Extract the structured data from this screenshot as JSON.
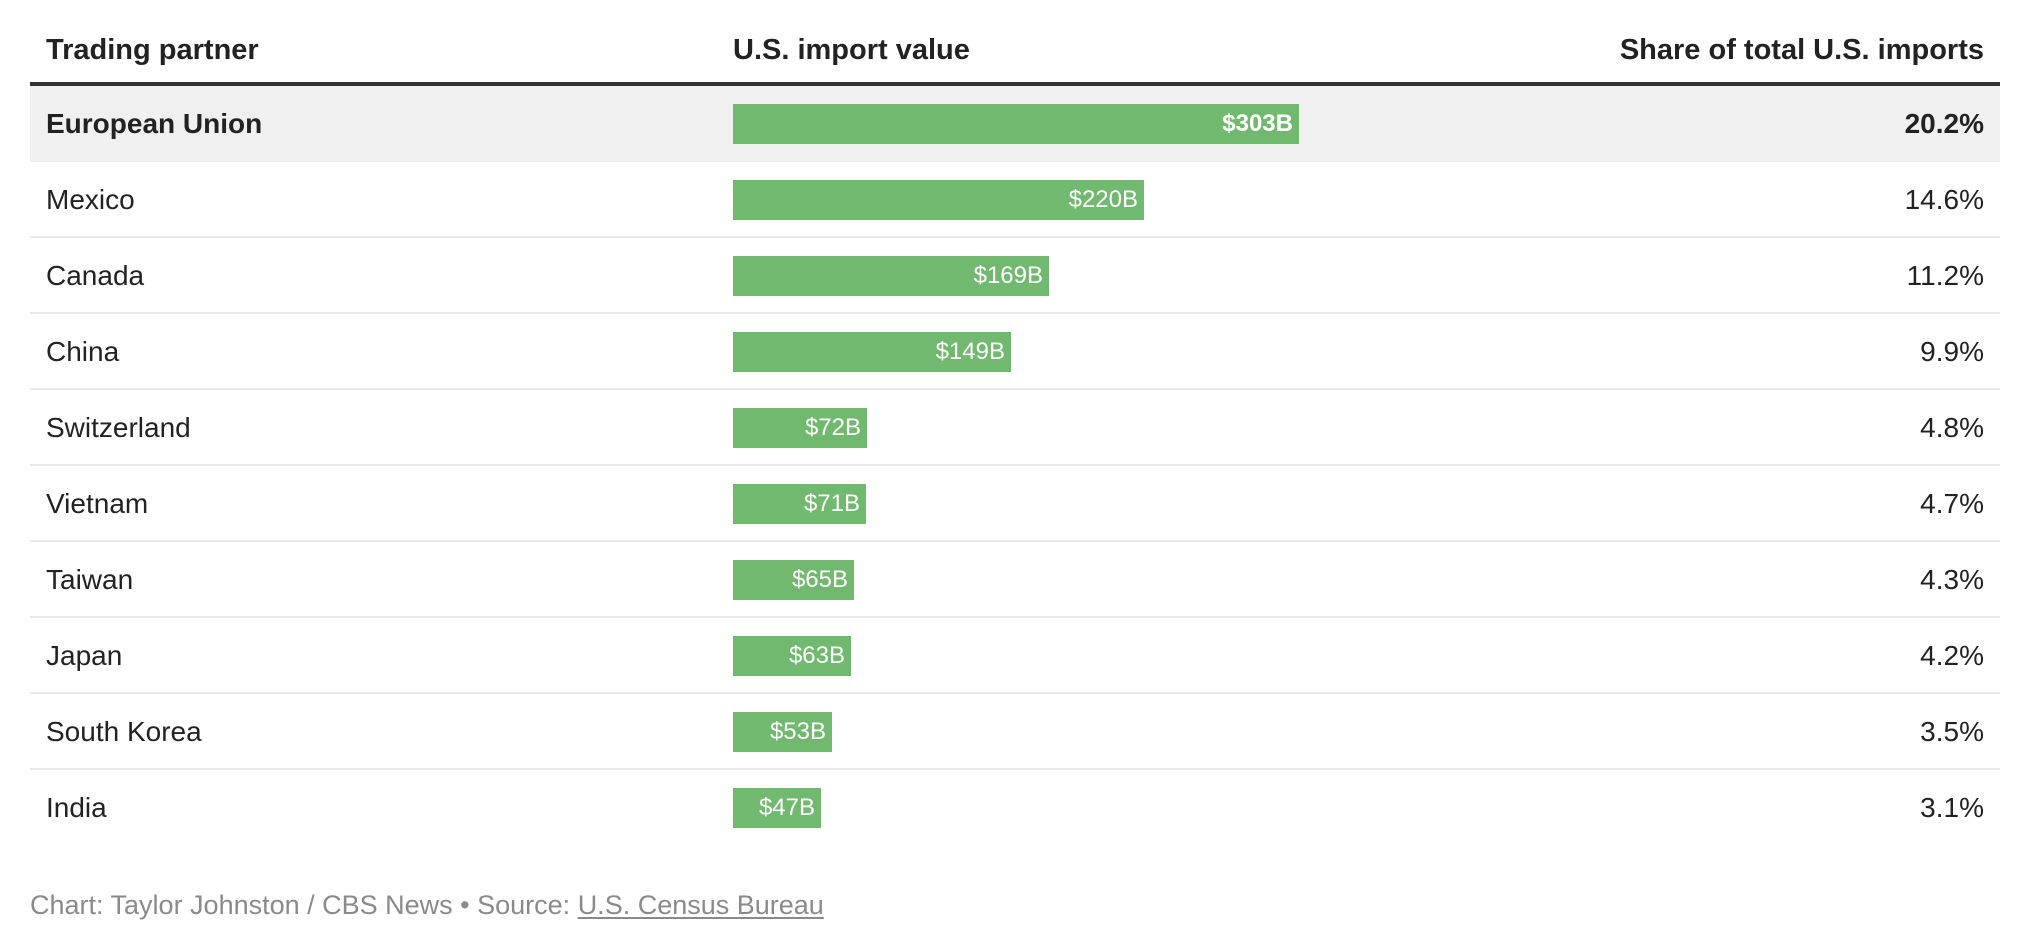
{
  "header": {
    "partner_label": "Trading partner",
    "value_label": "U.S. import value",
    "share_label": "Share of total U.S. imports"
  },
  "colors": {
    "bar": "#72b970",
    "highlight_row": "#f0f0f0",
    "header_rule": "#333333",
    "row_divider": "#e9e9e9",
    "footer_text": "#8a8a8a"
  },
  "chart_data": {
    "type": "bar",
    "orientation": "horizontal",
    "categories": [
      "European Union",
      "Mexico",
      "Canada",
      "China",
      "Switzerland",
      "Vietnam",
      "Taiwan",
      "Japan",
      "South Korea",
      "India"
    ],
    "values": [
      303,
      220,
      169,
      149,
      72,
      71,
      65,
      63,
      53,
      47
    ],
    "value_labels": [
      "$303B",
      "$220B",
      "$169B",
      "$149B",
      "$72B",
      "$71B",
      "$65B",
      "$63B",
      "$53B",
      "$47B"
    ],
    "shares": [
      "20.2%",
      "14.6%",
      "11.2%",
      "9.9%",
      "4.8%",
      "4.7%",
      "4.3%",
      "4.2%",
      "3.5%",
      "3.1%"
    ],
    "highlighted_category": "European Union",
    "xlim": [
      0,
      303
    ],
    "grid": false
  },
  "footer": {
    "credit_text": "Chart: Taylor Johnston / CBS News • Source: ",
    "source_link": "U.S. Census Bureau"
  }
}
